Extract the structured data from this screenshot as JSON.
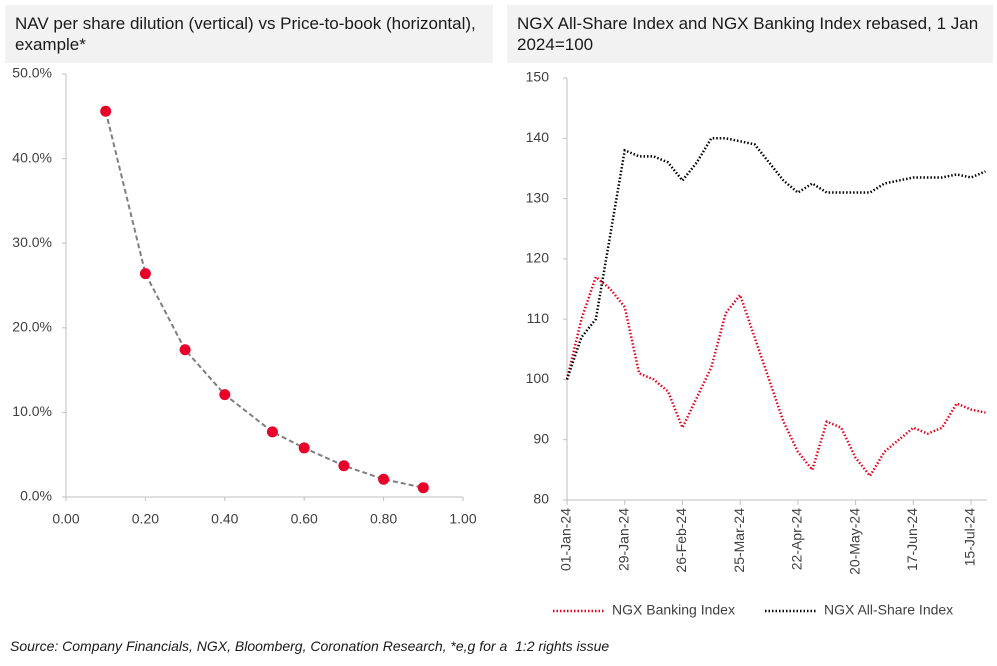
{
  "chart_data": [
    {
      "type": "scatter",
      "title": "NAV per share dilution (vertical) vs Price-to-book (horizontal), example*",
      "x": [
        0.1,
        0.2,
        0.3,
        0.4,
        0.52,
        0.6,
        0.7,
        0.8,
        0.9
      ],
      "values": [
        45.6,
        26.4,
        17.4,
        12.1,
        7.7,
        5.8,
        3.7,
        2.1,
        1.1
      ],
      "color": "#e8002a",
      "line_color": "#7f7f7f",
      "xlim": [
        0,
        1
      ],
      "xticks": [
        {
          "value": 0,
          "label": "0.00"
        },
        {
          "value": 0.2,
          "label": "0.20"
        },
        {
          "value": 0.4,
          "label": "0.40"
        },
        {
          "value": 0.6,
          "label": "0.60"
        },
        {
          "value": 0.8,
          "label": "0.80"
        },
        {
          "value": 1,
          "label": "1.00"
        }
      ],
      "ylim": [
        0,
        50
      ],
      "yticks": [
        {
          "value": 0,
          "label": "0.0%"
        },
        {
          "value": 10,
          "label": "10.0%"
        },
        {
          "value": 20,
          "label": "20.0%"
        },
        {
          "value": 30,
          "label": "30.0%"
        },
        {
          "value": 40,
          "label": "40.0%"
        },
        {
          "value": 50,
          "label": "50.0%"
        }
      ]
    },
    {
      "type": "line",
      "title": "NGX All-Share Index and NGX Banking Index rebased, 1 Jan 2024=100",
      "categories": [
        "01-Jan-24",
        null,
        null,
        null,
        "29-Jan-24",
        null,
        null,
        null,
        "26-Feb-24",
        null,
        null,
        null,
        "25-Mar-24",
        null,
        null,
        null,
        "22-Apr-24",
        null,
        null,
        null,
        "20-May-24",
        null,
        null,
        null,
        "17-Jun-24",
        null,
        null,
        null,
        "15-Jul-24",
        null
      ],
      "series": [
        {
          "name": "NGX Banking Index",
          "color": "#e8001c",
          "values": [
            100,
            110,
            117,
            115,
            112,
            101,
            100,
            98,
            92,
            97,
            102,
            111,
            114,
            107,
            100,
            93,
            88,
            85,
            93,
            92,
            87,
            84,
            88,
            90,
            92,
            91,
            92,
            96,
            95,
            94.5
          ]
        },
        {
          "name": "NGX All-Share Index",
          "color": "#000000",
          "values": [
            100,
            107,
            110,
            124,
            138,
            137,
            137,
            136,
            133,
            136,
            140,
            140,
            139.5,
            139,
            136,
            133,
            131,
            132.5,
            131,
            131,
            131,
            131,
            132.5,
            133,
            133.5,
            133.5,
            133.5,
            134,
            133.5,
            134.5
          ]
        }
      ],
      "ylim": [
        80,
        150
      ],
      "yticks": [
        80,
        90,
        100,
        110,
        120,
        130,
        140,
        150
      ],
      "legend": "bottom"
    }
  ],
  "footnote": "Source: Company Financials, NGX, Bloomberg, Coronation Research, *e,g for a  1:2 rights issue"
}
